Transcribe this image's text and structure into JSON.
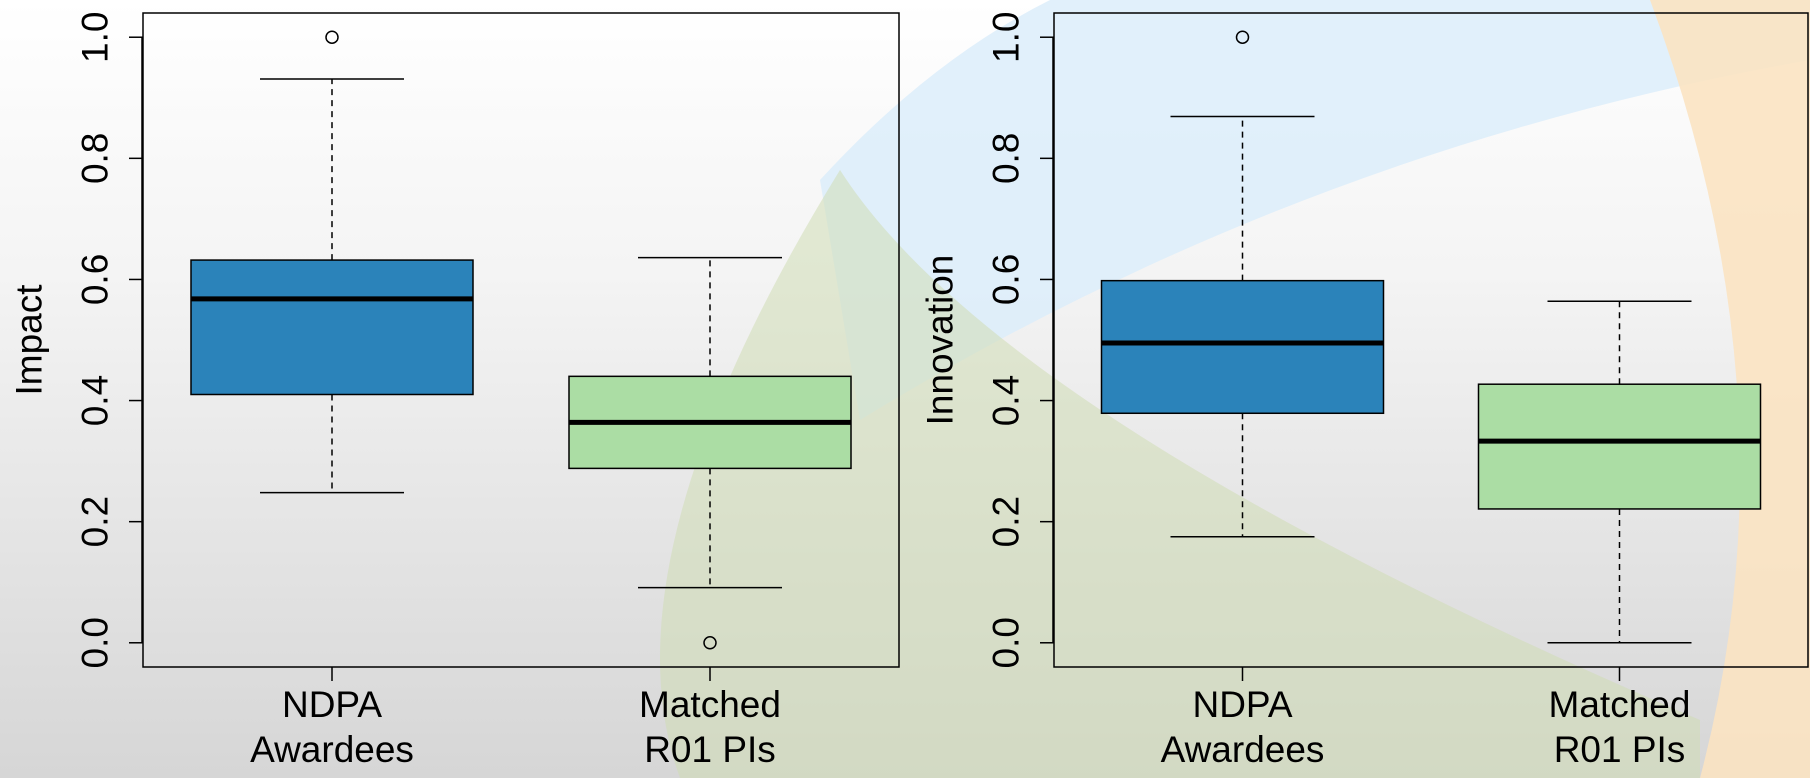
{
  "chart_data": [
    {
      "type": "box",
      "ylabel": "Impact",
      "categories": [
        [
          "NDPA",
          "Awardees"
        ],
        [
          "Matched",
          "R01 PIs"
        ]
      ],
      "colors": [
        "#2b83ba",
        "#abdda4"
      ],
      "boxes": [
        {
          "whislo": 0.248,
          "q1": 0.41,
          "med": 0.568,
          "q3": 0.632,
          "whishi": 0.931,
          "fliers": [
            1.0
          ]
        },
        {
          "whislo": 0.091,
          "q1": 0.288,
          "med": 0.364,
          "q3": 0.44,
          "whishi": 0.636,
          "fliers": [
            0.0
          ]
        }
      ],
      "ylim": [
        -0.04,
        1.04
      ],
      "yticks": [
        {
          "value": 0,
          "label": "0.0"
        },
        0.2,
        0.4,
        0.6,
        0.8,
        {
          "value": 1,
          "label": "1.0"
        }
      ]
    },
    {
      "type": "box",
      "ylabel": "Innovation",
      "categories": [
        [
          "NDPA",
          "Awardees"
        ],
        [
          "Matched",
          "R01 PIs"
        ]
      ],
      "colors": [
        "#2b83ba",
        "#abdda4"
      ],
      "boxes": [
        {
          "whislo": 0.175,
          "q1": 0.379,
          "med": 0.495,
          "q3": 0.598,
          "whishi": 0.869,
          "fliers": [
            1.0
          ]
        },
        {
          "whislo": 0.0,
          "q1": 0.221,
          "med": 0.333,
          "q3": 0.427,
          "whishi": 0.564,
          "fliers": []
        }
      ],
      "ylim": [
        -0.04,
        1.04
      ],
      "yticks": [
        {
          "value": 0,
          "label": "0.0"
        },
        0.2,
        0.4,
        0.6,
        0.8,
        {
          "value": 1,
          "label": "1.0"
        }
      ]
    }
  ]
}
